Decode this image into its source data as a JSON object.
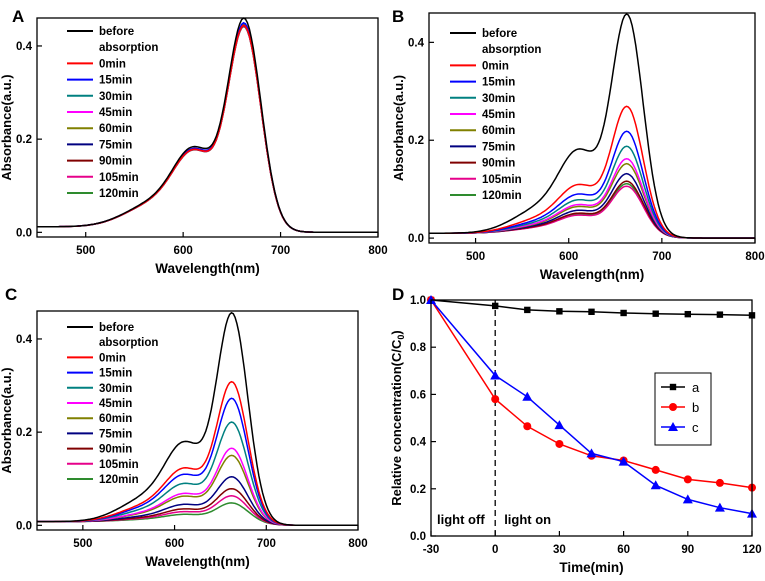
{
  "chart_data": [
    {
      "type": "line",
      "panel_label": "A",
      "xlabel": "Wavelength(nm)",
      "ylabel": "Absorbance(a.u.)",
      "xlim": [
        450,
        800
      ],
      "ylim": [
        -0.01,
        0.46
      ],
      "x_ticks": [
        500,
        600,
        700,
        800
      ],
      "y_ticks": [
        0.0,
        0.2,
        0.4
      ],
      "legend_position": "top-left",
      "peak_shape": {
        "left_base": 0.012,
        "shoulder_scale": 0.465,
        "right_base": 0.0
      },
      "series": [
        {
          "name": "before\nabsorption",
          "color": "#000000",
          "peak": 0.44
        },
        {
          "name": "0min",
          "color": "#ff0000",
          "peak": 0.425
        },
        {
          "name": "15min",
          "color": "#0000ff",
          "peak": 0.43
        },
        {
          "name": "30min",
          "color": "#008080",
          "peak": 0.428
        },
        {
          "name": "45min",
          "color": "#ff00ff",
          "peak": 0.425
        },
        {
          "name": "60min",
          "color": "#808000",
          "peak": 0.425
        },
        {
          "name": "75min",
          "color": "#000080",
          "peak": 0.426
        },
        {
          "name": "90min",
          "color": "#800000",
          "peak": 0.424
        },
        {
          "name": "105min",
          "color": "#e6008a",
          "peak": 0.423
        },
        {
          "name": "120min",
          "color": "#2e8b2e",
          "peak": 0.422
        }
      ]
    },
    {
      "type": "line",
      "panel_label": "B",
      "xlabel": "Wavelength(nm)",
      "ylabel": "Absorbance(a.u.)",
      "xlim": [
        450,
        800
      ],
      "ylim": [
        -0.01,
        0.46
      ],
      "x_ticks": [
        500,
        600,
        700,
        800
      ],
      "y_ticks": [
        0.0,
        0.2,
        0.4
      ],
      "legend_position": "top-left",
      "peak_shape": {
        "left_base": 0.01,
        "shoulder_scale": 0.465,
        "right_base": 0.0
      },
      "series": [
        {
          "name": "before\nabsorption",
          "color": "#000000",
          "peak": 0.44
        },
        {
          "name": "0min",
          "color": "#ff0000",
          "peak": 0.255
        },
        {
          "name": "15min",
          "color": "#0000ff",
          "peak": 0.205
        },
        {
          "name": "30min",
          "color": "#008080",
          "peak": 0.175
        },
        {
          "name": "45min",
          "color": "#ff00ff",
          "peak": 0.15
        },
        {
          "name": "60min",
          "color": "#808000",
          "peak": 0.14
        },
        {
          "name": "75min",
          "color": "#000080",
          "peak": 0.12
        },
        {
          "name": "90min",
          "color": "#800000",
          "peak": 0.105
        },
        {
          "name": "105min",
          "color": "#e6008a",
          "peak": 0.095
        },
        {
          "name": "120min",
          "color": "#2e8b2e",
          "peak": 0.1
        }
      ]
    },
    {
      "type": "line",
      "panel_label": "C",
      "xlabel": "Wavelength(nm)",
      "ylabel": "Absorbance(a.u.)",
      "xlim": [
        450,
        800
      ],
      "ylim": [
        -0.01,
        0.46
      ],
      "x_ticks": [
        500,
        600,
        700,
        800
      ],
      "y_ticks": [
        0.0,
        0.2,
        0.4
      ],
      "legend_position": "top-left",
      "peak_shape": {
        "left_base": 0.008,
        "shoulder_scale": 0.465,
        "right_base": 0.0
      },
      "series": [
        {
          "name": "before\nabsorption",
          "color": "#000000",
          "peak": 0.44
        },
        {
          "name": "0min",
          "color": "#ff0000",
          "peak": 0.295
        },
        {
          "name": "15min",
          "color": "#0000ff",
          "peak": 0.26
        },
        {
          "name": "30min",
          "color": "#008080",
          "peak": 0.21
        },
        {
          "name": "45min",
          "color": "#ff00ff",
          "peak": 0.155
        },
        {
          "name": "60min",
          "color": "#808000",
          "peak": 0.14
        },
        {
          "name": "75min",
          "color": "#000080",
          "peak": 0.095
        },
        {
          "name": "90min",
          "color": "#800000",
          "peak": 0.07
        },
        {
          "name": "105min",
          "color": "#e6008a",
          "peak": 0.055
        },
        {
          "name": "120min",
          "color": "#2e8b2e",
          "peak": 0.04
        }
      ]
    },
    {
      "type": "line",
      "panel_label": "D",
      "xlabel": "Time(min)",
      "ylabel_main": "Relative concentration(C/C",
      "ylabel_sub": "0",
      "ylabel_close": ")",
      "xlim": [
        -30,
        120
      ],
      "ylim": [
        0.0,
        1.0
      ],
      "x_ticks": [
        -30,
        0,
        30,
        60,
        90,
        120
      ],
      "y_ticks": [
        0.0,
        0.2,
        0.4,
        0.6,
        0.8,
        1.0
      ],
      "legend_position": "middle-right",
      "divider_x": 0,
      "annotations": [
        "light off",
        "light on"
      ],
      "series": [
        {
          "name": "a",
          "color": "#000000",
          "marker": "square",
          "x": [
            -30,
            0,
            15,
            30,
            45,
            60,
            75,
            90,
            105,
            120
          ],
          "y": [
            1.0,
            0.975,
            0.958,
            0.952,
            0.95,
            0.945,
            0.942,
            0.94,
            0.938,
            0.935
          ]
        },
        {
          "name": "b",
          "color": "#ff0000",
          "marker": "circle",
          "x": [
            -30,
            0,
            15,
            30,
            45,
            60,
            75,
            90,
            105,
            120
          ],
          "y": [
            1.0,
            0.58,
            0.465,
            0.39,
            0.34,
            0.32,
            0.28,
            0.24,
            0.225,
            0.205
          ]
        },
        {
          "name": "c",
          "color": "#0000ff",
          "marker": "triangle",
          "x": [
            -30,
            0,
            15,
            30,
            45,
            60,
            75,
            90,
            105,
            120
          ],
          "y": [
            1.0,
            0.68,
            0.59,
            0.47,
            0.35,
            0.315,
            0.215,
            0.155,
            0.12,
            0.095
          ]
        }
      ]
    }
  ]
}
